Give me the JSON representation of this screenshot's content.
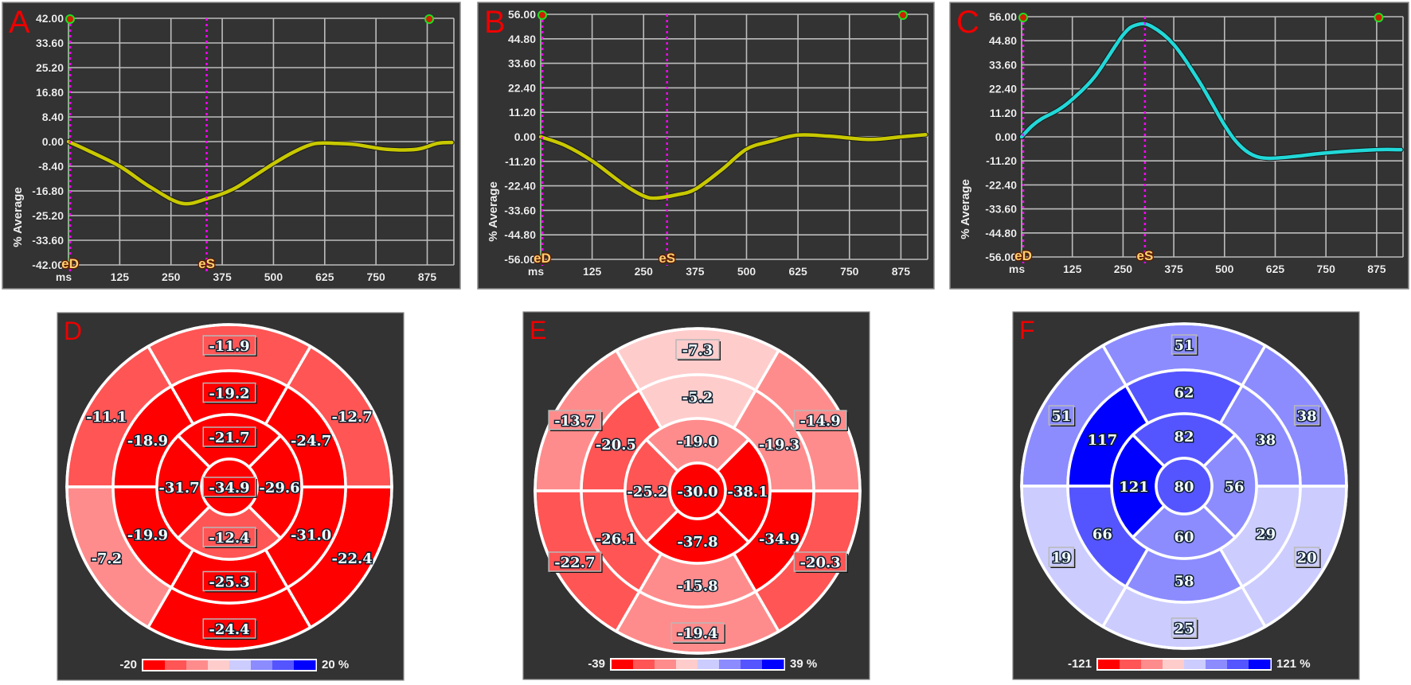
{
  "chart_data": [
    {
      "type": "line",
      "panel": "A",
      "ylabel": "% Average",
      "x_unit_label": "ms",
      "xlim": [
        0,
        940
      ],
      "ylim": [
        -42,
        42
      ],
      "xticks": [
        "125",
        "250",
        "375",
        "500",
        "625",
        "750",
        "875"
      ],
      "yticks": [
        "42.00",
        "33.60",
        "25.20",
        "16.80",
        "8.40",
        "0.00",
        "-8.40",
        "-16.80",
        "-25.20",
        "-33.60",
        "-42.00"
      ],
      "grid": true,
      "events": [
        {
          "label": "eD",
          "x": 0
        },
        {
          "label": "eS",
          "x": 337
        }
      ],
      "end_marker_x": 880,
      "series": [
        {
          "color": "#c8c800",
          "points": [
            [
              0,
              0
            ],
            [
              50,
              -3.2
            ],
            [
              125,
              -8.4
            ],
            [
              200,
              -15.5
            ],
            [
              276,
              -21
            ],
            [
              337,
              -19.5
            ],
            [
              400,
              -16.3
            ],
            [
              450,
              -12
            ],
            [
              500,
              -7.5
            ],
            [
              550,
              -3.5
            ],
            [
              600,
              -0.7
            ],
            [
              650,
              -0.6
            ],
            [
              700,
              -1
            ],
            [
              775,
              -2.6
            ],
            [
              850,
              -2.6
            ],
            [
              900,
              -0.6
            ],
            [
              935,
              -0.3
            ]
          ]
        }
      ]
    },
    {
      "type": "line",
      "panel": "B",
      "ylabel": "% Average",
      "x_unit_label": "ms",
      "xlim": [
        0,
        940
      ],
      "ylim": [
        -56,
        56
      ],
      "xticks": [
        "125",
        "250",
        "375",
        "500",
        "625",
        "750",
        "875"
      ],
      "yticks": [
        "56.00",
        "44.80",
        "33.60",
        "22.40",
        "11.20",
        "0.00",
        "-11.20",
        "-22.40",
        "-33.60",
        "-44.80",
        "-56.00"
      ],
      "grid": true,
      "events": [
        {
          "label": "eD",
          "x": 0
        },
        {
          "label": "eS",
          "x": 307
        }
      ],
      "end_marker_x": 880,
      "series": [
        {
          "color": "#c8c800",
          "points": [
            [
              0,
              0
            ],
            [
              60,
              -4
            ],
            [
              125,
              -11
            ],
            [
              200,
              -21.5
            ],
            [
              250,
              -27
            ],
            [
              280,
              -28
            ],
            [
              330,
              -26.5
            ],
            [
              375,
              -24
            ],
            [
              440,
              -15
            ],
            [
              500,
              -5.6
            ],
            [
              560,
              -2
            ],
            [
              625,
              0.8
            ],
            [
              700,
              0.3
            ],
            [
              800,
              -1.2
            ],
            [
              875,
              0
            ],
            [
              935,
              1
            ]
          ]
        }
      ]
    },
    {
      "type": "line",
      "panel": "C",
      "ylabel": "% Average",
      "x_unit_label": "ms",
      "xlim": [
        0,
        940
      ],
      "ylim": [
        -56,
        56
      ],
      "xticks": [
        "125",
        "250",
        "375",
        "500",
        "625",
        "750",
        "875"
      ],
      "yticks": [
        "56.00",
        "44.80",
        "33.60",
        "22.40",
        "11.20",
        "0.00",
        "-11.20",
        "-22.40",
        "-33.60",
        "-44.80",
        "-56.00"
      ],
      "grid": true,
      "events": [
        {
          "label": "eD",
          "x": 0
        },
        {
          "label": "eS",
          "x": 304
        }
      ],
      "end_marker_x": 880,
      "series": [
        {
          "color": "#22d8d8",
          "points": [
            [
              0,
              0
            ],
            [
              25,
              5
            ],
            [
              50,
              8.5
            ],
            [
              90,
              12.5
            ],
            [
              125,
              17.5
            ],
            [
              180,
              28
            ],
            [
              250,
              47.5
            ],
            [
              285,
              52.3
            ],
            [
              320,
              51.5
            ],
            [
              375,
              43
            ],
            [
              437,
              26
            ],
            [
              500,
              5.5
            ],
            [
              535,
              -3.5
            ],
            [
              570,
              -8.5
            ],
            [
              610,
              -10
            ],
            [
              680,
              -9
            ],
            [
              750,
              -7.5
            ],
            [
              875,
              -6
            ],
            [
              935,
              -6
            ]
          ]
        }
      ]
    },
    {
      "type": "heatmap",
      "panel": "D",
      "layout": "bullseye",
      "colorbar": {
        "min": -20,
        "max": 20,
        "min_label": "-20",
        "max_label": "20 %",
        "colors": [
          "#ff0000",
          "#ff5555",
          "#ff8c8c",
          "#ffcccc",
          "#ccccff",
          "#8c8cff",
          "#5555ff",
          "#0000ff"
        ]
      },
      "basal": {
        "top": "-11.9",
        "upper-right": "-12.7",
        "lower-right": "-22.4",
        "bottom": "-24.4",
        "lower-left": "-7.2",
        "upper-left": "-11.1"
      },
      "mid": {
        "top": "-19.2",
        "upper-right": "-24.7",
        "lower-right": "-31.0",
        "bottom": "-25.3",
        "lower-left": "-19.9",
        "upper-left": "-18.9"
      },
      "apical": {
        "top": "-21.7",
        "right": "-29.6",
        "bottom": "-12.4",
        "left": "-31.7"
      },
      "apex": "-34.9"
    },
    {
      "type": "heatmap",
      "panel": "E",
      "layout": "bullseye",
      "colorbar": {
        "min": -39,
        "max": 39,
        "min_label": "-39",
        "max_label": "39 %",
        "colors": [
          "#ff0000",
          "#ff5555",
          "#ff8c8c",
          "#ffcccc",
          "#ccccff",
          "#8c8cff",
          "#5555ff",
          "#0000ff"
        ]
      },
      "basal": {
        "top": "-7.3",
        "upper-right": "-14.9",
        "lower-right": "-20.3",
        "bottom": "-19.4",
        "lower-left": "-22.7",
        "upper-left": "-13.7"
      },
      "mid": {
        "top": "-5.2",
        "upper-right": "-19.3",
        "lower-right": "-34.9",
        "bottom": "-15.8",
        "lower-left": "-26.1",
        "upper-left": "-20.5"
      },
      "apical": {
        "top": "-19.0",
        "right": "-38.1",
        "bottom": "-37.8",
        "left": "-25.2"
      },
      "apex": "-30.0"
    },
    {
      "type": "heatmap",
      "panel": "F",
      "layout": "bullseye",
      "colorbar": {
        "min": -121,
        "max": 121,
        "min_label": "-121",
        "max_label": "121 %",
        "colors": [
          "#ff0000",
          "#ff5555",
          "#ff8c8c",
          "#ffcccc",
          "#ccccff",
          "#8c8cff",
          "#5555ff",
          "#0000ff"
        ]
      },
      "basal": {
        "top": "51",
        "upper-right": "38",
        "lower-right": "20",
        "bottom": "25",
        "lower-left": "19",
        "upper-left": "51"
      },
      "mid": {
        "top": "62",
        "upper-right": "38",
        "lower-right": "29",
        "bottom": "58",
        "lower-left": "66",
        "upper-left": "117"
      },
      "apical": {
        "top": "82",
        "right": "56",
        "bottom": "60",
        "left": "121"
      },
      "apex": "80"
    }
  ],
  "colors": {
    "panel_bg": "#333333",
    "grid": "#bdbdbd",
    "event_line": "#ff00ff",
    "panel_letter": "#ee0000"
  }
}
